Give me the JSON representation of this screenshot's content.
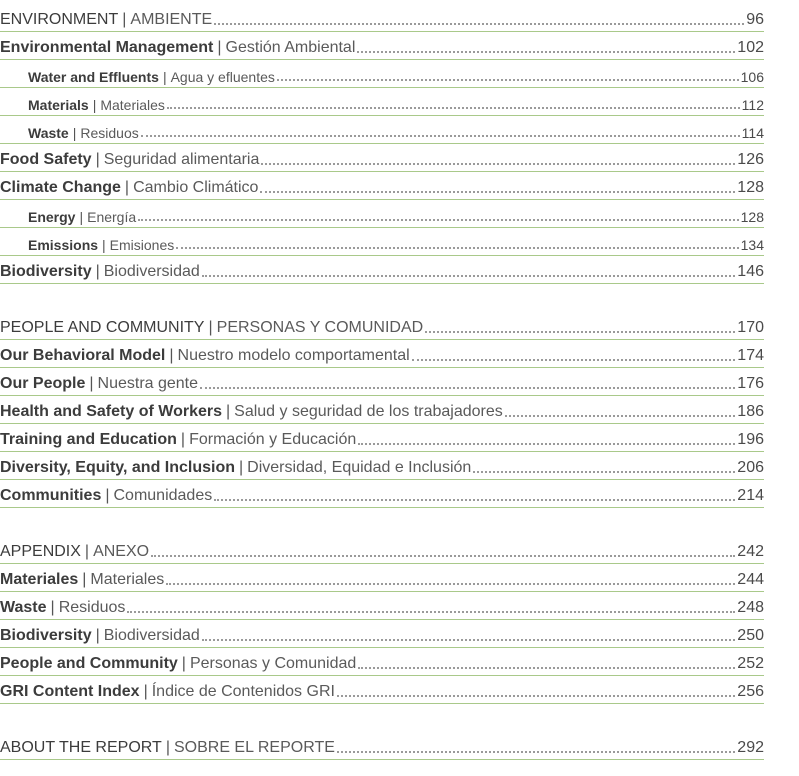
{
  "sections": [
    {
      "entries": [
        {
          "title": "ENVIRONMENT",
          "subtitle": "AMBIENTE",
          "page": "96",
          "level": 1,
          "heading": true
        },
        {
          "title": "Environmental Management",
          "subtitle": "Gestión Ambiental",
          "page": "102",
          "level": 1
        },
        {
          "title": "Water and Effluents",
          "subtitle": "Agua y efluentes",
          "page": "106",
          "level": 2
        },
        {
          "title": "Materials",
          "subtitle": "Materiales",
          "page": "112",
          "level": 2
        },
        {
          "title": "Waste",
          "subtitle": "Residuos",
          "page": "114",
          "level": 2
        },
        {
          "title": "Food Safety",
          "subtitle": "Seguridad alimentaria",
          "page": "126",
          "level": 1
        },
        {
          "title": "Climate Change",
          "subtitle": "Cambio Climático",
          "page": "128",
          "level": 1
        },
        {
          "title": "Energy",
          "subtitle": "Energía",
          "page": "128",
          "level": 2
        },
        {
          "title": "Emissions",
          "subtitle": "Emisiones",
          "page": "134",
          "level": 2
        },
        {
          "title": "Biodiversity",
          "subtitle": "Biodiversidad",
          "page": "146",
          "level": 1
        }
      ]
    },
    {
      "entries": [
        {
          "title": "PEOPLE AND COMMUNITY",
          "subtitle": "PERSONAS Y COMUNIDAD",
          "page": "170",
          "level": 1,
          "heading": true
        },
        {
          "title": "Our Behavioral Model",
          "subtitle": "Nuestro modelo comportamental",
          "page": "174",
          "level": 1
        },
        {
          "title": "Our People",
          "subtitle": "Nuestra gente",
          "page": "176",
          "level": 1
        },
        {
          "title": "Health and Safety of Workers",
          "subtitle": "Salud y seguridad de los trabajadores",
          "page": "186",
          "level": 1
        },
        {
          "title": "Training and Education",
          "subtitle": "Formación y Educación",
          "page": "196",
          "level": 1
        },
        {
          "title": "Diversity, Equity, and Inclusion",
          "subtitle": "Diversidad, Equidad e Inclusión",
          "page": "206",
          "level": 1
        },
        {
          "title": "Communities",
          "subtitle": "Comunidades",
          "page": "214",
          "level": 1
        }
      ]
    },
    {
      "entries": [
        {
          "title": "APPENDIX",
          "subtitle": "ANEXO",
          "page": "242",
          "level": 1,
          "heading": true
        },
        {
          "title": "Materiales",
          "subtitle": "Materiales",
          "page": "244",
          "level": 1
        },
        {
          "title": "Waste",
          "subtitle": "Residuos",
          "page": "248",
          "level": 1
        },
        {
          "title": "Biodiversity",
          "subtitle": "Biodiversidad",
          "page": "250",
          "level": 1
        },
        {
          "title": "People and Community",
          "subtitle": "Personas y Comunidad",
          "page": "252",
          "level": 1
        },
        {
          "title": "GRI Content Index",
          "subtitle": "Índice de Contenidos GRI",
          "page": "256",
          "level": 1
        }
      ]
    },
    {
      "entries": [
        {
          "title": "ABOUT THE REPORT",
          "subtitle": "SOBRE EL REPORTE",
          "page": "292",
          "level": 1,
          "heading": true
        }
      ]
    }
  ],
  "separator": "|",
  "colors": {
    "rule": "#a9c98a",
    "leader": "#9a9a9a",
    "text": "#3c3c3c"
  }
}
